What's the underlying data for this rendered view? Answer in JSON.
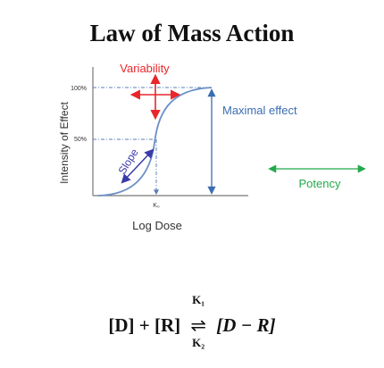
{
  "title": "Law of Mass Action",
  "diagram": {
    "y_axis_label": "Intensity of Effect",
    "x_axis_label": "Log Dose",
    "tick_100": "100%",
    "tick_50": "50%",
    "x_tick": "K₀",
    "label_variability": "Variability",
    "label_maximal_effect": "Maximal effect",
    "label_slope": "Slope",
    "label_potency": "Potency",
    "colors": {
      "curve": "#6b8fc7",
      "guides": "#5a7fb8",
      "variability": "#e8262b",
      "maximal_effect": "#3a6db2",
      "slope": "#3a3aa8",
      "potency": "#22a94a",
      "axis": "#777777"
    }
  },
  "equation": {
    "left": "[D] + [R]",
    "arrow": "⇌",
    "k_top": "K₁",
    "k_bottom": "K₂",
    "right": "[D − R]"
  }
}
